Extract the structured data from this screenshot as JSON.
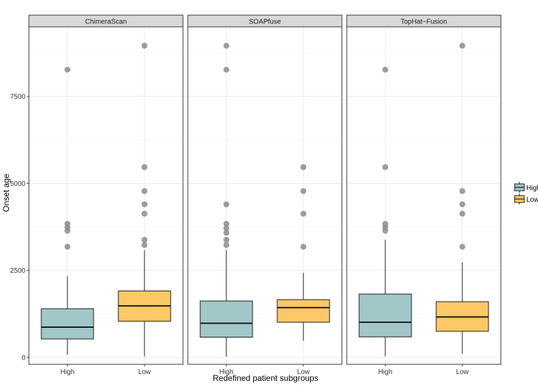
{
  "chart_data": {
    "type": "boxplot",
    "xlabel": "Redefined patient subgroups",
    "ylabel": "Onset age",
    "ylim": [
      -200,
      9500
    ],
    "yticks": [
      0,
      2500,
      5000,
      7500
    ],
    "yticklabels": [
      "0",
      "2500",
      "5000",
      "7500"
    ],
    "categories": [
      "High",
      "Low"
    ],
    "legend": {
      "position": "right",
      "entries": [
        {
          "label": "High",
          "color": "#a1c7c9"
        },
        {
          "label": "Low",
          "color": "#fdc867"
        }
      ]
    },
    "panels": [
      {
        "title": "ChimeraScan",
        "groups": [
          {
            "category": "High",
            "min": 80,
            "q1": 530,
            "median": 870,
            "q3": 1400,
            "max": 2330,
            "outliers": [
              3180,
              3640,
              3740,
              3840,
              8270
            ]
          },
          {
            "category": "Low",
            "min": 30,
            "q1": 1040,
            "median": 1480,
            "q3": 1910,
            "max": 3080,
            "outliers": [
              3230,
              3380,
              4130,
              4400,
              4780,
              5470,
              8960
            ]
          }
        ]
      },
      {
        "title": "SOAPfuse",
        "groups": [
          {
            "category": "High",
            "min": 20,
            "q1": 580,
            "median": 980,
            "q3": 1620,
            "max": 3080,
            "outliers": [
              3230,
              3380,
              3580,
              3710,
              3840,
              4400,
              8270,
              8960
            ]
          },
          {
            "category": "Low",
            "min": 480,
            "q1": 1010,
            "median": 1430,
            "q3": 1660,
            "max": 2430,
            "outliers": [
              3180,
              4130,
              4780,
              5470
            ]
          }
        ]
      },
      {
        "title": "TopHat−Fusion",
        "groups": [
          {
            "category": "High",
            "min": 30,
            "q1": 590,
            "median": 1010,
            "q3": 1820,
            "max": 3380,
            "outliers": [
              3640,
              3740,
              3840,
              5470,
              8270
            ]
          },
          {
            "category": "Low",
            "min": 110,
            "q1": 750,
            "median": 1160,
            "q3": 1600,
            "max": 2730,
            "outliers": [
              3180,
              4130,
              4400,
              4780,
              8960
            ]
          }
        ]
      }
    ]
  },
  "colors": {
    "High": "#a1c7c9",
    "Low": "#fdc867",
    "outlier": "#8c8c8c",
    "strip_bg": "#d9d9d9",
    "grid": "#ebebeb"
  }
}
